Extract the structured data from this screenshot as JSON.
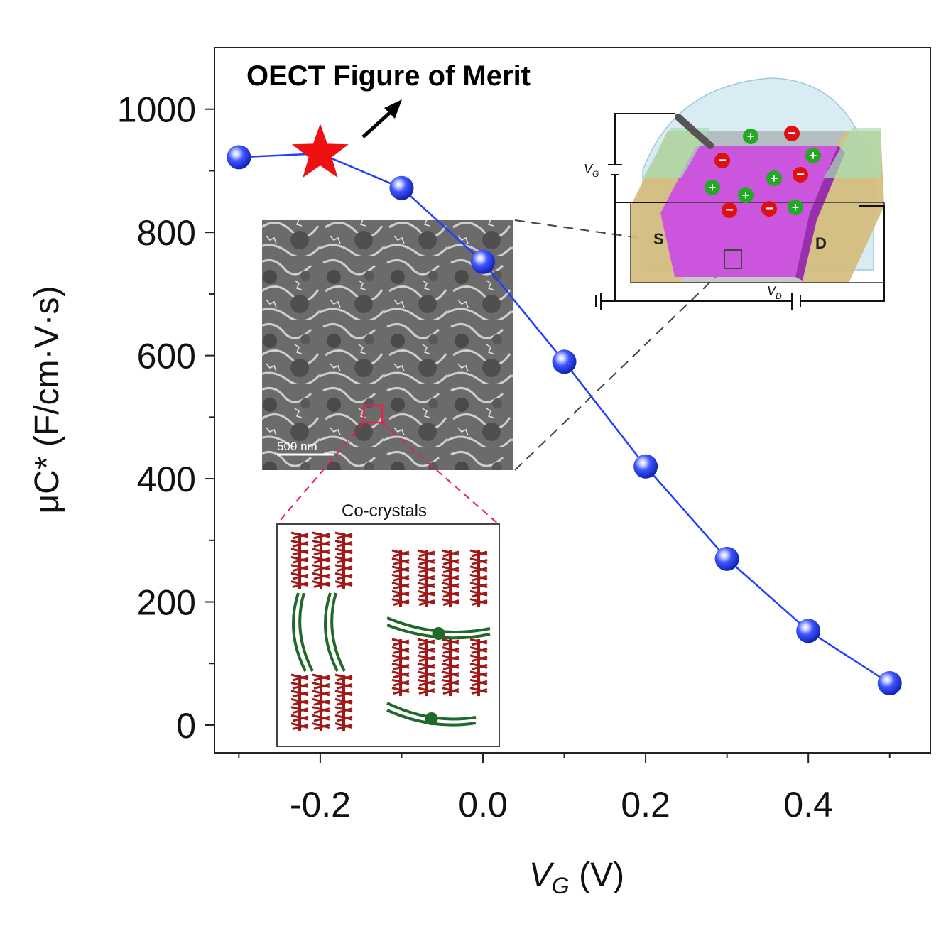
{
  "chart_data": {
    "type": "line",
    "title": "OECT Figure of Merit",
    "xlabel_main": "V",
    "xlabel_sub": "G",
    "xlabel_unit": " (V)",
    "ylabel": "μC* (F/cm·V·s)",
    "xlim": [
      -0.33,
      0.55
    ],
    "ylim": [
      -45,
      1100
    ],
    "x_ticks": [
      -0.2,
      0.0,
      0.2,
      0.4
    ],
    "x_tick_labels": [
      "-0.2",
      "0.0",
      "0.2",
      "0.4"
    ],
    "y_ticks": [
      0,
      200,
      400,
      600,
      800,
      1000
    ],
    "y_tick_labels": [
      "0",
      "200",
      "400",
      "600",
      "800",
      "1000"
    ],
    "grid": false,
    "series": [
      {
        "x": [
          -0.3,
          -0.1,
          0.0,
          0.1,
          0.2,
          0.3,
          0.4,
          0.5
        ],
        "y": [
          922,
          872,
          752,
          590,
          420,
          270,
          153,
          68
        ],
        "color": "#1f3fff"
      }
    ],
    "highlight": {
      "x": -0.2,
      "y": 928,
      "marker": "star",
      "color": "#ee1111"
    },
    "insets": {
      "sem": {
        "scale_bar_label": "500 nm"
      },
      "cocrystal": {
        "title": "Co-crystals",
        "colors": {
          "acceptor": "#a01818",
          "donor": "#1f6a2a"
        }
      },
      "device": {
        "source_label": "S",
        "drain_label": "D",
        "gate_label_main": "V",
        "gate_label_sub": "G",
        "drain_label_main": "V",
        "drain_label_sub": "D",
        "cation_symbol": "+",
        "anion_symbol": "−",
        "colors": {
          "channel": "#cc55dd",
          "cation": "#22aa22",
          "anion": "#dd1111",
          "electrolyte": "#bfe0ee"
        }
      }
    }
  }
}
